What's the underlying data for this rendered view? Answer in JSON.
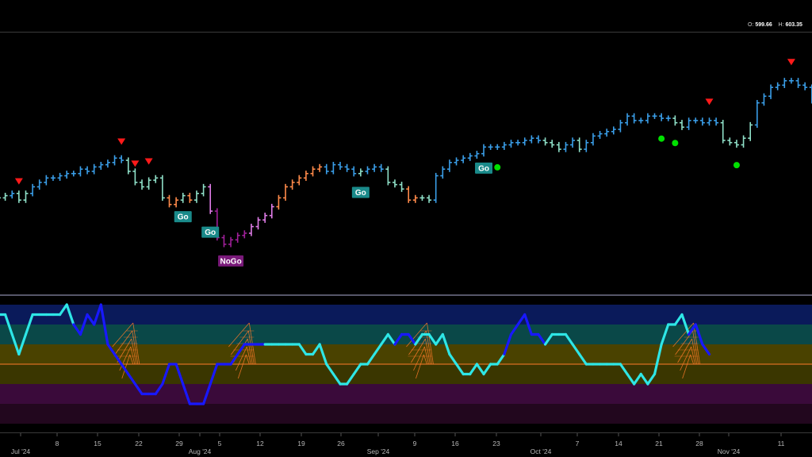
{
  "ohlc": {
    "o_label": "O:",
    "o_value": "599.66",
    "h_label": "H:",
    "h_value": "603.35"
  },
  "colors": {
    "strong_go": "#3a9ee8",
    "weak_go": "#8fe0c8",
    "go_fading": "#ff8a4a",
    "weak_nogo": "#e07de8",
    "strong_nogo": "#a0209a",
    "osc_up": "#2ee6e6",
    "osc_down": "#1818ff",
    "sell_marker": "#ff1a1a",
    "buy_marker": "#00e000"
  },
  "chart_data": [
    {
      "type": "ohlc",
      "x_ticks": [
        "Jul '24",
        "8",
        "15",
        "22",
        "29",
        "Aug '24",
        "5",
        "12",
        "19",
        "26",
        "Sep '24",
        "9",
        "16",
        "23",
        "Oct '24",
        "7",
        "14",
        "21",
        "28",
        "Nov '24",
        "11"
      ],
      "ylim": [
        505,
        612
      ],
      "bars": [
        {
          "c": 544,
          "r": "weak_go"
        },
        {
          "c": 545,
          "r": "weak_go"
        },
        {
          "c": 546,
          "r": "strong_go"
        },
        {
          "c": 543,
          "r": "weak_go"
        },
        {
          "c": 546,
          "r": "weak_go"
        },
        {
          "c": 549,
          "r": "strong_go"
        },
        {
          "c": 551,
          "r": "strong_go"
        },
        {
          "c": 553,
          "r": "strong_go"
        },
        {
          "c": 553,
          "r": "strong_go"
        },
        {
          "c": 554,
          "r": "strong_go"
        },
        {
          "c": 555,
          "r": "strong_go"
        },
        {
          "c": 555,
          "r": "strong_go"
        },
        {
          "c": 557,
          "r": "strong_go"
        },
        {
          "c": 556,
          "r": "strong_go"
        },
        {
          "c": 558,
          "r": "strong_go"
        },
        {
          "c": 559,
          "r": "strong_go"
        },
        {
          "c": 560,
          "r": "strong_go"
        },
        {
          "c": 562,
          "r": "strong_go"
        },
        {
          "c": 561,
          "r": "strong_go"
        },
        {
          "c": 556,
          "r": "weak_go"
        },
        {
          "c": 551,
          "r": "weak_go"
        },
        {
          "c": 549,
          "r": "weak_go"
        },
        {
          "c": 552,
          "r": "weak_go"
        },
        {
          "c": 553,
          "r": "weak_go"
        },
        {
          "c": 544,
          "r": "weak_go"
        },
        {
          "c": 541,
          "r": "go_fading"
        },
        {
          "c": 543,
          "r": "go_fading"
        },
        {
          "c": 545,
          "r": "weak_go"
        },
        {
          "c": 543,
          "r": "go_fading"
        },
        {
          "c": 546,
          "r": "weak_go"
        },
        {
          "c": 549,
          "r": "weak_go"
        },
        {
          "c": 538,
          "r": "weak_nogo"
        },
        {
          "c": 526,
          "r": "strong_nogo"
        },
        {
          "c": 523,
          "r": "strong_nogo"
        },
        {
          "c": 525,
          "r": "strong_nogo"
        },
        {
          "c": 527,
          "r": "strong_nogo"
        },
        {
          "c": 528,
          "r": "strong_nogo"
        },
        {
          "c": 531,
          "r": "weak_nogo"
        },
        {
          "c": 534,
          "r": "weak_nogo"
        },
        {
          "c": 536,
          "r": "weak_nogo"
        },
        {
          "c": 540,
          "r": "weak_nogo"
        },
        {
          "c": 544,
          "r": "go_fading"
        },
        {
          "c": 549,
          "r": "go_fading"
        },
        {
          "c": 551,
          "r": "go_fading"
        },
        {
          "c": 553,
          "r": "go_fading"
        },
        {
          "c": 555,
          "r": "go_fading"
        },
        {
          "c": 557,
          "r": "go_fading"
        },
        {
          "c": 558,
          "r": "go_fading"
        },
        {
          "c": 556,
          "r": "strong_go"
        },
        {
          "c": 559,
          "r": "strong_go"
        },
        {
          "c": 558,
          "r": "strong_go"
        },
        {
          "c": 557,
          "r": "strong_go"
        },
        {
          "c": 555,
          "r": "strong_go"
        },
        {
          "c": 556,
          "r": "weak_go"
        },
        {
          "c": 557,
          "r": "strong_go"
        },
        {
          "c": 558,
          "r": "strong_go"
        },
        {
          "c": 557,
          "r": "strong_go"
        },
        {
          "c": 551,
          "r": "weak_go"
        },
        {
          "c": 550,
          "r": "weak_go"
        },
        {
          "c": 548,
          "r": "weak_go"
        },
        {
          "c": 543,
          "r": "go_fading"
        },
        {
          "c": 544,
          "r": "go_fading"
        },
        {
          "c": 544,
          "r": "weak_go"
        },
        {
          "c": 543,
          "r": "weak_go"
        },
        {
          "c": 554,
          "r": "strong_go"
        },
        {
          "c": 557,
          "r": "strong_go"
        },
        {
          "c": 560,
          "r": "strong_go"
        },
        {
          "c": 561,
          "r": "strong_go"
        },
        {
          "c": 562,
          "r": "strong_go"
        },
        {
          "c": 563,
          "r": "strong_go"
        },
        {
          "c": 564,
          "r": "strong_go"
        },
        {
          "c": 567,
          "r": "strong_go"
        },
        {
          "c": 567,
          "r": "strong_go"
        },
        {
          "c": 567,
          "r": "strong_go"
        },
        {
          "c": 568,
          "r": "strong_go"
        },
        {
          "c": 569,
          "r": "strong_go"
        },
        {
          "c": 569,
          "r": "strong_go"
        },
        {
          "c": 570,
          "r": "strong_go"
        },
        {
          "c": 571,
          "r": "strong_go"
        },
        {
          "c": 570,
          "r": "strong_go"
        },
        {
          "c": 569,
          "r": "weak_go"
        },
        {
          "c": 568,
          "r": "weak_go"
        },
        {
          "c": 566,
          "r": "weak_go"
        },
        {
          "c": 568,
          "r": "strong_go"
        },
        {
          "c": 570,
          "r": "strong_go"
        },
        {
          "c": 566,
          "r": "weak_go"
        },
        {
          "c": 569,
          "r": "strong_go"
        },
        {
          "c": 572,
          "r": "strong_go"
        },
        {
          "c": 573,
          "r": "strong_go"
        },
        {
          "c": 574,
          "r": "strong_go"
        },
        {
          "c": 575,
          "r": "strong_go"
        },
        {
          "c": 578,
          "r": "strong_go"
        },
        {
          "c": 581,
          "r": "strong_go"
        },
        {
          "c": 579,
          "r": "strong_go"
        },
        {
          "c": 579,
          "r": "strong_go"
        },
        {
          "c": 581,
          "r": "strong_go"
        },
        {
          "c": 581,
          "r": "strong_go"
        },
        {
          "c": 580,
          "r": "strong_go"
        },
        {
          "c": 580,
          "r": "strong_go"
        },
        {
          "c": 578,
          "r": "weak_go"
        },
        {
          "c": 576,
          "r": "weak_go"
        },
        {
          "c": 579,
          "r": "strong_go"
        },
        {
          "c": 579,
          "r": "strong_go"
        },
        {
          "c": 578,
          "r": "strong_go"
        },
        {
          "c": 579,
          "r": "strong_go"
        },
        {
          "c": 578,
          "r": "strong_go"
        },
        {
          "c": 570,
          "r": "weak_go"
        },
        {
          "c": 569,
          "r": "weak_go"
        },
        {
          "c": 568,
          "r": "weak_go"
        },
        {
          "c": 571,
          "r": "weak_go"
        },
        {
          "c": 577,
          "r": "weak_go"
        },
        {
          "c": 587,
          "r": "strong_go"
        },
        {
          "c": 590,
          "r": "strong_go"
        },
        {
          "c": 594,
          "r": "strong_go"
        },
        {
          "c": 595,
          "r": "strong_go"
        },
        {
          "c": 597,
          "r": "strong_go"
        },
        {
          "c": 597,
          "r": "strong_go"
        },
        {
          "c": 595,
          "r": "strong_go"
        },
        {
          "c": 594,
          "r": "strong_go"
        },
        {
          "c": 588,
          "r": "strong_go"
        }
      ],
      "sell_markers": [
        3,
        18,
        20,
        22,
        104,
        116
      ],
      "buy_markers": [
        73,
        97,
        99,
        108
      ],
      "labels": [
        {
          "text": "Go",
          "bar": 27
        },
        {
          "text": "Go",
          "bar": 31
        },
        {
          "text": "NoGo",
          "bar": 34
        },
        {
          "text": "Go",
          "bar": 53
        },
        {
          "text": "Go",
          "bar": 71
        }
      ]
    },
    {
      "type": "line",
      "ylim": [
        -6,
        6
      ],
      "bands": [
        {
          "from": 4,
          "to": 6,
          "color": "#0a1a5a"
        },
        {
          "from": 2,
          "to": 4,
          "color": "#0a4848"
        },
        {
          "from": 0,
          "to": 2,
          "color": "#4a4200"
        },
        {
          "from": -2,
          "to": 0,
          "color": "#3a3600"
        },
        {
          "from": -4,
          "to": -2,
          "color": "#3a0a3a"
        },
        {
          "from": -6,
          "to": -4,
          "color": "#22071e"
        }
      ],
      "zero_line_color": "#ff7a2a",
      "values": [
        5,
        5,
        3,
        1,
        3,
        5,
        5,
        5,
        5,
        5,
        6,
        4,
        3,
        5,
        4,
        6,
        2,
        1,
        0,
        -1,
        -2,
        -3,
        -3,
        -3,
        -2,
        0,
        0,
        -2,
        -4,
        -4,
        -4,
        -2,
        0,
        0,
        0,
        1,
        2,
        2,
        2,
        2,
        2,
        2,
        2,
        2,
        2,
        1,
        1,
        2,
        0,
        -1,
        -2,
        -2,
        -1,
        0,
        0,
        1,
        2,
        3,
        2,
        3,
        3,
        2,
        3,
        3,
        2,
        3,
        1,
        0,
        -1,
        -1,
        0,
        -1,
        0,
        0,
        1,
        3,
        4,
        5,
        3,
        3,
        2,
        3,
        3,
        3,
        2,
        1,
        0,
        0,
        0,
        0,
        0,
        0,
        -1,
        -2,
        -1,
        -2,
        -1,
        2,
        4,
        4,
        5,
        3,
        4,
        2,
        1
      ],
      "colors": "uuuuuuuuuuudddddddddddddddddddddddddddduuuuuuuuuuuuuuuuuuuddduuuuuuuuuuuuudddddduuuuuuuuuuuuuuuuuuuuuddddddddddddddddddddddddddu",
      "brackets": [
        19,
        36,
        62,
        101
      ]
    }
  ]
}
